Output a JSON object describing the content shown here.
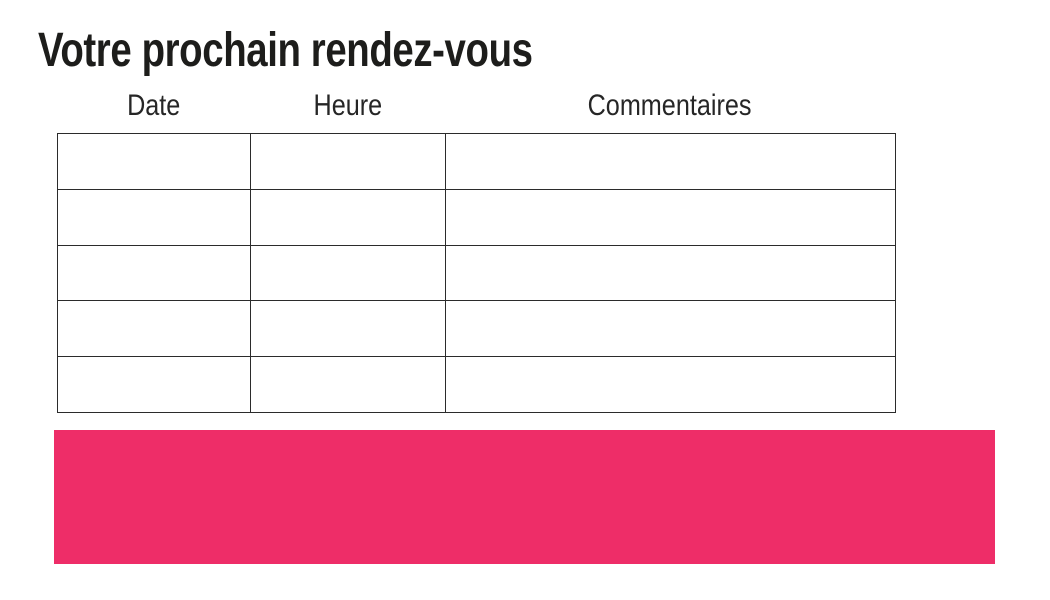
{
  "page": {
    "title": "Votre prochain rendez-vous"
  },
  "table": {
    "headers": [
      "Date",
      "Heure",
      "Commentaires"
    ],
    "rows": [
      [
        "",
        "",
        ""
      ],
      [
        "",
        "",
        ""
      ],
      [
        "",
        "",
        ""
      ],
      [
        "",
        "",
        ""
      ],
      [
        "",
        "",
        ""
      ]
    ]
  },
  "colors": {
    "text": "#1d1d1b",
    "table_border": "#2b2b2b",
    "accent_pink": "#EE2D68"
  }
}
